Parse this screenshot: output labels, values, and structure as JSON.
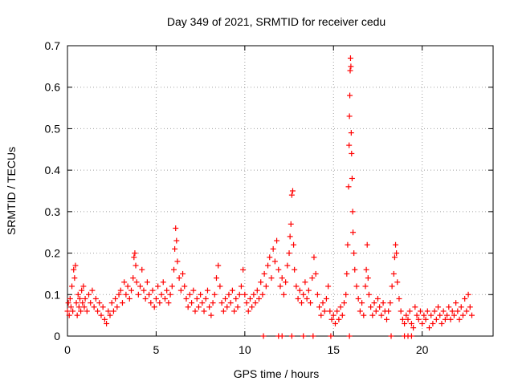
{
  "chart_data": {
    "type": "scatter",
    "title": "Day 349 of 2021, SRMTID for receiver cedu",
    "xlabel": "GPS time / hours",
    "ylabel": "SRMTID / TECUs",
    "xlim": [
      0,
      24
    ],
    "ylim": [
      0,
      0.7
    ],
    "xticks": [
      0,
      5,
      10,
      15,
      20
    ],
    "yticks": [
      0,
      0.1,
      0.2,
      0.3,
      0.4,
      0.5,
      0.6,
      0.7
    ],
    "grid": true,
    "marker": "+",
    "color": "#ff0000",
    "series": [
      {
        "name": "SRMTID",
        "points": [
          [
            0.0,
            0.06
          ],
          [
            0.05,
            0.08
          ],
          [
            0.1,
            0.05
          ],
          [
            0.15,
            0.09
          ],
          [
            0.2,
            0.07
          ],
          [
            0.25,
            0.12
          ],
          [
            0.3,
            0.06
          ],
          [
            0.35,
            0.16
          ],
          [
            0.4,
            0.14
          ],
          [
            0.45,
            0.17
          ],
          [
            0.5,
            0.08
          ],
          [
            0.55,
            0.05
          ],
          [
            0.6,
            0.1
          ],
          [
            0.65,
            0.07
          ],
          [
            0.7,
            0.09
          ],
          [
            0.75,
            0.06
          ],
          [
            0.8,
            0.11
          ],
          [
            0.85,
            0.08
          ],
          [
            0.9,
            0.12
          ],
          [
            0.95,
            0.07
          ],
          [
            1.0,
            0.09
          ],
          [
            1.1,
            0.06
          ],
          [
            1.2,
            0.1
          ],
          [
            1.3,
            0.08
          ],
          [
            1.4,
            0.11
          ],
          [
            1.5,
            0.07
          ],
          [
            1.6,
            0.09
          ],
          [
            1.7,
            0.06
          ],
          [
            1.8,
            0.08
          ],
          [
            1.9,
            0.05
          ],
          [
            2.0,
            0.07
          ],
          [
            2.1,
            0.04
          ],
          [
            2.2,
            0.03
          ],
          [
            2.3,
            0.06
          ],
          [
            2.4,
            0.05
          ],
          [
            2.5,
            0.08
          ],
          [
            2.6,
            0.06
          ],
          [
            2.7,
            0.09
          ],
          [
            2.8,
            0.07
          ],
          [
            2.9,
            0.1
          ],
          [
            3.0,
            0.11
          ],
          [
            3.1,
            0.08
          ],
          [
            3.2,
            0.13
          ],
          [
            3.3,
            0.1
          ],
          [
            3.4,
            0.12
          ],
          [
            3.5,
            0.09
          ],
          [
            3.6,
            0.11
          ],
          [
            3.7,
            0.14
          ],
          [
            3.75,
            0.19
          ],
          [
            3.8,
            0.2
          ],
          [
            3.85,
            0.17
          ],
          [
            3.9,
            0.13
          ],
          [
            4.0,
            0.1
          ],
          [
            4.1,
            0.12
          ],
          [
            4.2,
            0.16
          ],
          [
            4.3,
            0.11
          ],
          [
            4.4,
            0.09
          ],
          [
            4.5,
            0.13
          ],
          [
            4.6,
            0.1
          ],
          [
            4.7,
            0.08
          ],
          [
            4.8,
            0.11
          ],
          [
            4.9,
            0.07
          ],
          [
            5.0,
            0.09
          ],
          [
            5.1,
            0.12
          ],
          [
            5.2,
            0.08
          ],
          [
            5.3,
            0.1
          ],
          [
            5.4,
            0.13
          ],
          [
            5.5,
            0.09
          ],
          [
            5.6,
            0.11
          ],
          [
            5.7,
            0.08
          ],
          [
            5.8,
            0.1
          ],
          [
            5.9,
            0.12
          ],
          [
            6.0,
            0.16
          ],
          [
            6.05,
            0.21
          ],
          [
            6.1,
            0.26
          ],
          [
            6.15,
            0.23
          ],
          [
            6.2,
            0.18
          ],
          [
            6.3,
            0.14
          ],
          [
            6.4,
            0.11
          ],
          [
            6.5,
            0.15
          ],
          [
            6.6,
            0.12
          ],
          [
            6.7,
            0.09
          ],
          [
            6.8,
            0.07
          ],
          [
            6.9,
            0.1
          ],
          [
            7.0,
            0.08
          ],
          [
            7.1,
            0.11
          ],
          [
            7.2,
            0.06
          ],
          [
            7.3,
            0.09
          ],
          [
            7.4,
            0.07
          ],
          [
            7.5,
            0.1
          ],
          [
            7.6,
            0.08
          ],
          [
            7.7,
            0.06
          ],
          [
            7.8,
            0.09
          ],
          [
            7.9,
            0.11
          ],
          [
            8.0,
            0.07
          ],
          [
            8.1,
            0.05
          ],
          [
            8.2,
            0.08
          ],
          [
            8.3,
            0.1
          ],
          [
            8.4,
            0.14
          ],
          [
            8.5,
            0.17
          ],
          [
            8.6,
            0.12
          ],
          [
            8.7,
            0.08
          ],
          [
            8.8,
            0.06
          ],
          [
            8.9,
            0.09
          ],
          [
            9.0,
            0.07
          ],
          [
            9.1,
            0.1
          ],
          [
            9.2,
            0.08
          ],
          [
            9.3,
            0.11
          ],
          [
            9.4,
            0.06
          ],
          [
            9.5,
            0.09
          ],
          [
            9.6,
            0.07
          ],
          [
            9.7,
            0.1
          ],
          [
            9.8,
            0.12
          ],
          [
            9.9,
            0.16
          ],
          [
            10.0,
            0.1
          ],
          [
            10.1,
            0.08
          ],
          [
            10.2,
            0.06
          ],
          [
            10.3,
            0.09
          ],
          [
            10.4,
            0.07
          ],
          [
            10.5,
            0.1
          ],
          [
            10.6,
            0.08
          ],
          [
            10.7,
            0.11
          ],
          [
            10.8,
            0.09
          ],
          [
            10.9,
            0.13
          ],
          [
            11.0,
            0.1
          ],
          [
            11.1,
            0.15
          ],
          [
            11.2,
            0.12
          ],
          [
            11.3,
            0.17
          ],
          [
            11.4,
            0.19
          ],
          [
            11.5,
            0.14
          ],
          [
            11.6,
            0.21
          ],
          [
            11.7,
            0.18
          ],
          [
            11.8,
            0.23
          ],
          [
            11.9,
            0.16
          ],
          [
            12.0,
            0.12
          ],
          [
            12.1,
            0.14
          ],
          [
            12.2,
            0.1
          ],
          [
            12.3,
            0.13
          ],
          [
            12.4,
            0.17
          ],
          [
            12.5,
            0.2
          ],
          [
            12.55,
            0.24
          ],
          [
            12.6,
            0.27
          ],
          [
            12.65,
            0.34
          ],
          [
            12.7,
            0.35
          ],
          [
            12.75,
            0.22
          ],
          [
            12.8,
            0.16
          ],
          [
            12.9,
            0.12
          ],
          [
            13.0,
            0.09
          ],
          [
            13.1,
            0.11
          ],
          [
            13.2,
            0.08
          ],
          [
            13.3,
            0.1
          ],
          [
            13.4,
            0.13
          ],
          [
            13.5,
            0.09
          ],
          [
            13.6,
            0.11
          ],
          [
            13.7,
            0.08
          ],
          [
            13.8,
            0.14
          ],
          [
            13.9,
            0.19
          ],
          [
            14.0,
            0.15
          ],
          [
            14.1,
            0.1
          ],
          [
            14.2,
            0.07
          ],
          [
            14.3,
            0.05
          ],
          [
            14.4,
            0.08
          ],
          [
            14.5,
            0.06
          ],
          [
            14.6,
            0.09
          ],
          [
            14.7,
            0.12
          ],
          [
            14.8,
            0.06
          ],
          [
            14.9,
            0.04
          ],
          [
            15.0,
            0.05
          ],
          [
            15.1,
            0.03
          ],
          [
            15.2,
            0.06
          ],
          [
            15.3,
            0.04
          ],
          [
            15.4,
            0.07
          ],
          [
            15.5,
            0.05
          ],
          [
            15.6,
            0.08
          ],
          [
            15.7,
            0.1
          ],
          [
            15.75,
            0.15
          ],
          [
            15.8,
            0.22
          ],
          [
            15.85,
            0.36
          ],
          [
            15.88,
            0.46
          ],
          [
            15.9,
            0.53
          ],
          [
            15.92,
            0.58
          ],
          [
            15.94,
            0.64
          ],
          [
            15.96,
            0.67
          ],
          [
            15.98,
            0.65
          ],
          [
            16.0,
            0.49
          ],
          [
            16.02,
            0.44
          ],
          [
            16.05,
            0.38
          ],
          [
            16.08,
            0.3
          ],
          [
            16.1,
            0.25
          ],
          [
            16.15,
            0.2
          ],
          [
            16.2,
            0.16
          ],
          [
            16.3,
            0.12
          ],
          [
            16.4,
            0.09
          ],
          [
            16.5,
            0.06
          ],
          [
            16.6,
            0.08
          ],
          [
            16.7,
            0.05
          ],
          [
            16.8,
            0.12
          ],
          [
            16.85,
            0.16
          ],
          [
            16.9,
            0.22
          ],
          [
            16.95,
            0.14
          ],
          [
            17.0,
            0.1
          ],
          [
            17.1,
            0.07
          ],
          [
            17.2,
            0.05
          ],
          [
            17.3,
            0.08
          ],
          [
            17.4,
            0.06
          ],
          [
            17.5,
            0.09
          ],
          [
            17.6,
            0.07
          ],
          [
            17.7,
            0.05
          ],
          [
            17.8,
            0.08
          ],
          [
            17.9,
            0.06
          ],
          [
            18.0,
            0.04
          ],
          [
            18.1,
            0.06
          ],
          [
            18.2,
            0.08
          ],
          [
            18.3,
            0.12
          ],
          [
            18.4,
            0.15
          ],
          [
            18.45,
            0.19
          ],
          [
            18.5,
            0.22
          ],
          [
            18.55,
            0.2
          ],
          [
            18.6,
            0.13
          ],
          [
            18.7,
            0.09
          ],
          [
            18.8,
            0.06
          ],
          [
            18.9,
            0.04
          ],
          [
            19.0,
            0.03
          ],
          [
            19.1,
            0.05
          ],
          [
            19.2,
            0.04
          ],
          [
            19.3,
            0.06
          ],
          [
            19.4,
            0.03
          ],
          [
            19.5,
            0.02
          ],
          [
            19.6,
            0.07
          ],
          [
            19.7,
            0.05
          ],
          [
            19.8,
            0.04
          ],
          [
            19.9,
            0.06
          ],
          [
            20.0,
            0.03
          ],
          [
            20.1,
            0.05
          ],
          [
            20.2,
            0.04
          ],
          [
            20.3,
            0.06
          ],
          [
            20.4,
            0.02
          ],
          [
            20.5,
            0.05
          ],
          [
            20.6,
            0.03
          ],
          [
            20.7,
            0.06
          ],
          [
            20.8,
            0.04
          ],
          [
            20.9,
            0.07
          ],
          [
            21.0,
            0.05
          ],
          [
            21.1,
            0.03
          ],
          [
            21.2,
            0.06
          ],
          [
            21.3,
            0.04
          ],
          [
            21.4,
            0.05
          ],
          [
            21.5,
            0.07
          ],
          [
            21.6,
            0.04
          ],
          [
            21.7,
            0.06
          ],
          [
            21.8,
            0.05
          ],
          [
            21.9,
            0.08
          ],
          [
            22.0,
            0.06
          ],
          [
            22.1,
            0.04
          ],
          [
            22.2,
            0.07
          ],
          [
            22.3,
            0.05
          ],
          [
            22.4,
            0.09
          ],
          [
            22.5,
            0.06
          ],
          [
            22.6,
            0.1
          ],
          [
            22.7,
            0.07
          ],
          [
            22.8,
            0.05
          ]
        ]
      },
      {
        "name": "SRMTID (axis)",
        "points": [
          [
            11.05,
            0.0
          ],
          [
            11.9,
            0.0
          ],
          [
            12.1,
            0.0
          ],
          [
            12.65,
            0.0
          ],
          [
            13.3,
            0.0
          ],
          [
            13.85,
            0.0
          ],
          [
            14.85,
            0.0
          ],
          [
            15.9,
            0.0
          ],
          [
            18.25,
            0.0
          ],
          [
            19.0,
            0.0
          ],
          [
            19.2,
            0.0
          ],
          [
            19.4,
            0.0
          ]
        ]
      }
    ]
  }
}
